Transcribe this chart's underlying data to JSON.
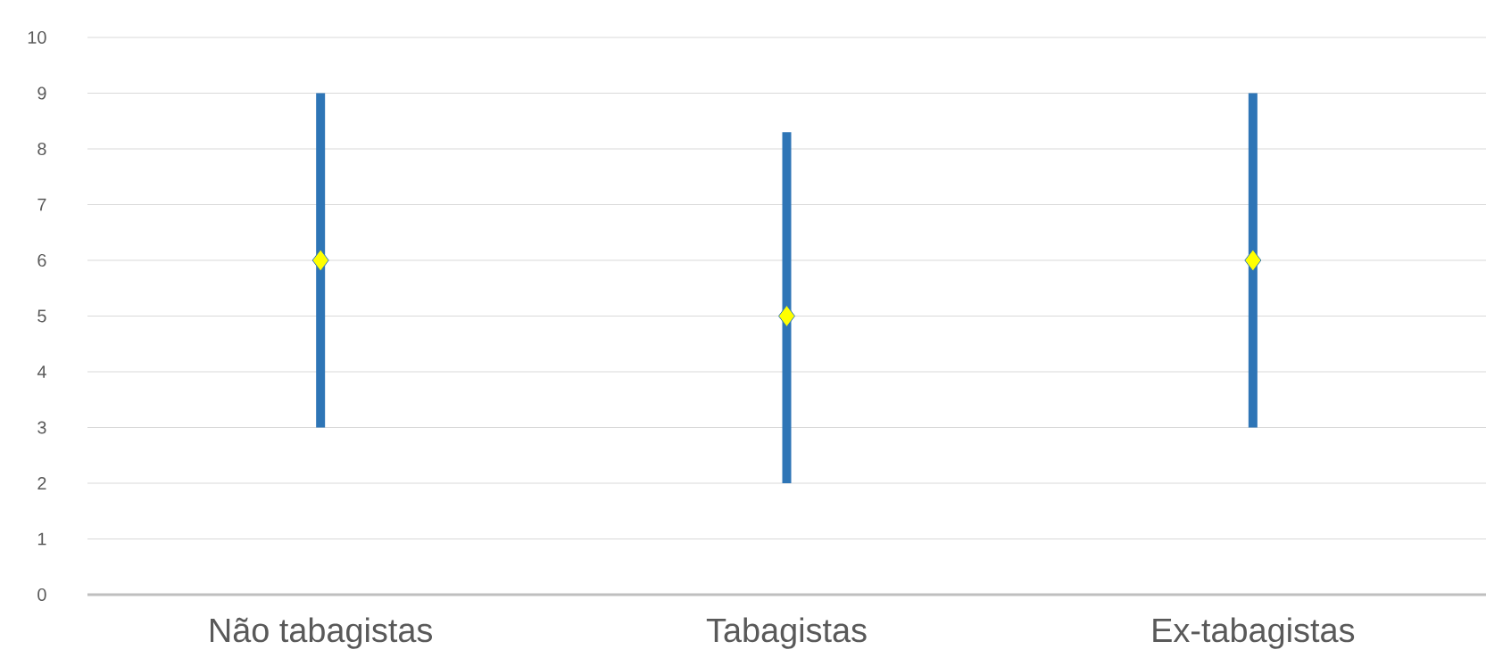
{
  "chart_data": {
    "type": "bar",
    "categories": [
      "Não tabagistas",
      "Tabagistas",
      "Ex-tabagistas"
    ],
    "ylim": [
      0,
      10
    ],
    "yticks": [
      0,
      1,
      2,
      3,
      4,
      5,
      6,
      7,
      8,
      9,
      10
    ],
    "grid": "y",
    "series": [
      {
        "color": "#2e75b6",
        "base": [
          3,
          2,
          3
        ],
        "values": [
          6,
          6.3,
          6
        ]
      },
      {
        "type": "scatter",
        "x": [
          "Não tabagistas",
          "Tabagistas",
          "Ex-tabagistas"
        ],
        "values": [
          6,
          5,
          6
        ],
        "color": "#ffff00",
        "marker": "diamond"
      }
    ]
  }
}
